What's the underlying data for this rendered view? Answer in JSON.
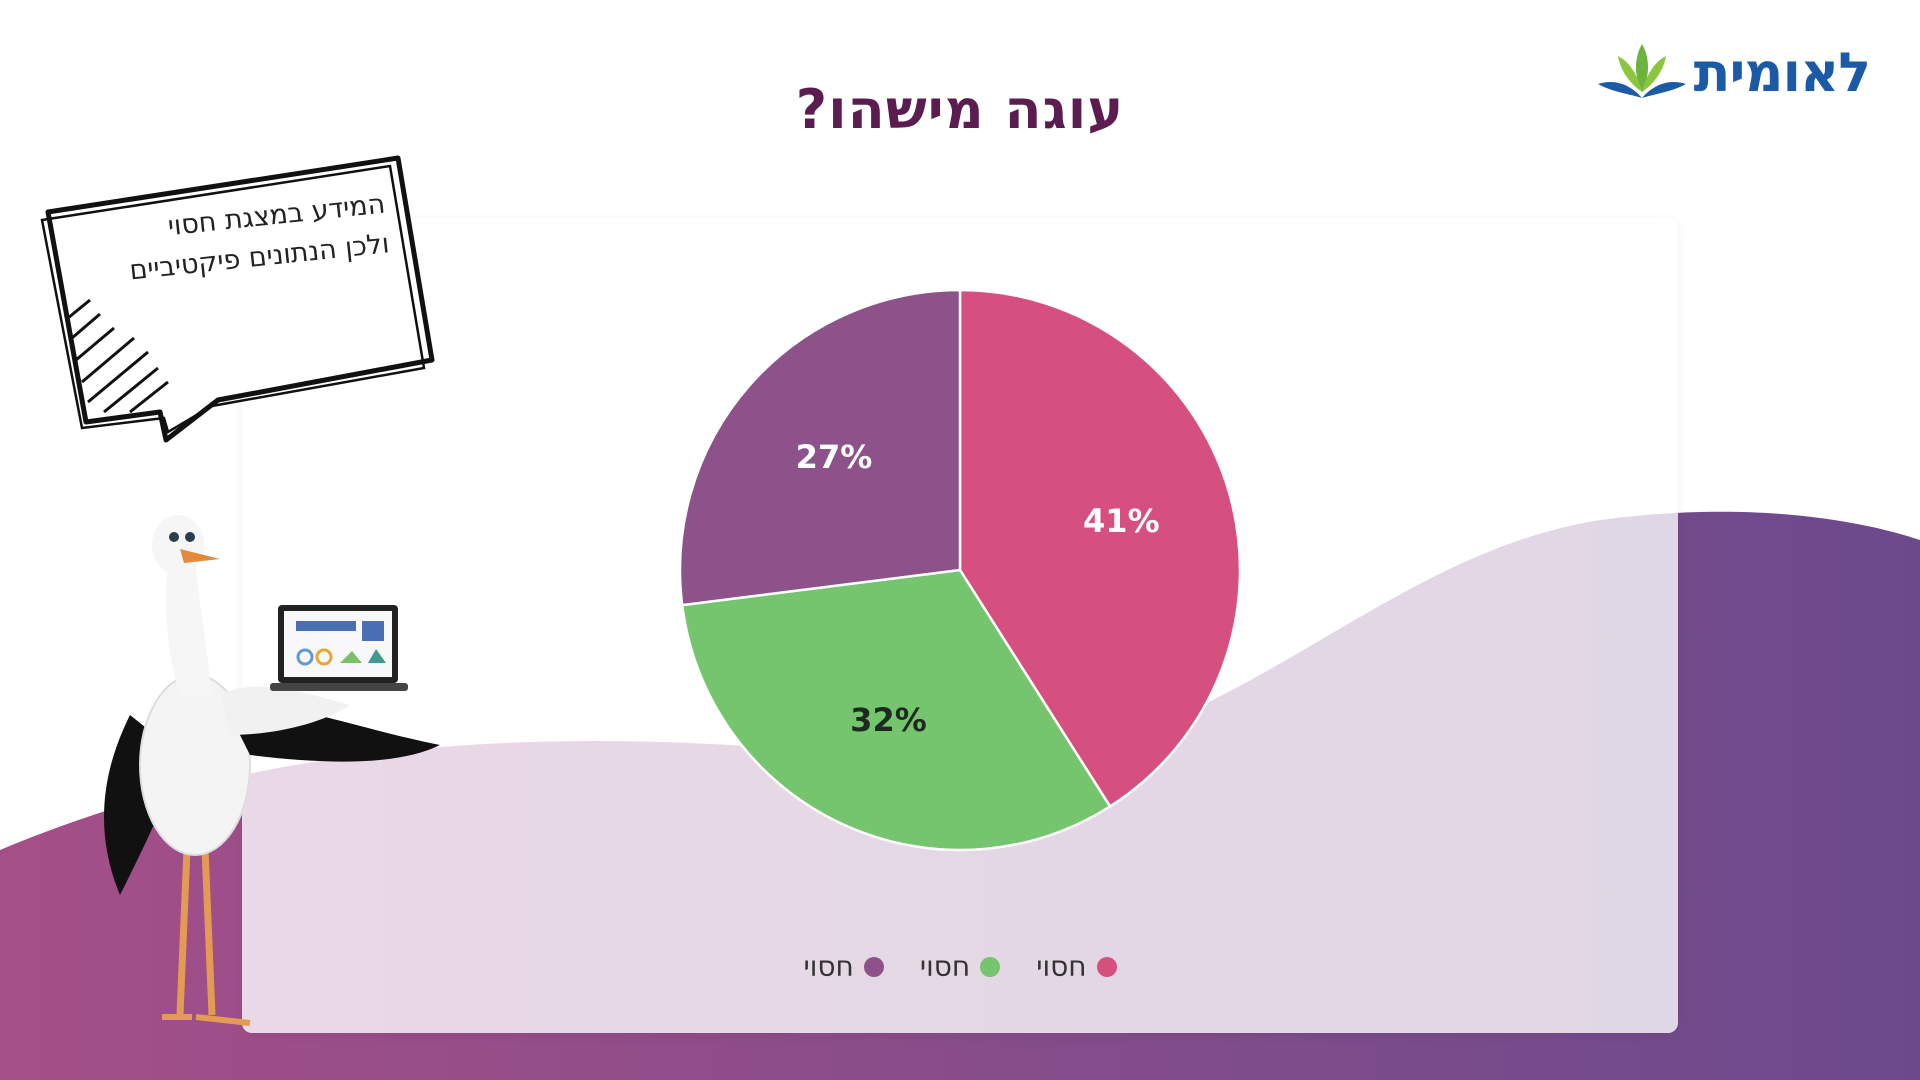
{
  "header": {
    "title": "עוגה מישהו?"
  },
  "logo": {
    "text": "לאומית",
    "icon": "flower-logo-icon"
  },
  "note": {
    "lines": [
      "המידע במצגת חסוי",
      "ולכן הנתונים פיקטיביים"
    ]
  },
  "chart_data": {
    "type": "pie",
    "values": [
      41,
      32,
      27
    ],
    "labels": [
      "חסוי",
      "חסוי",
      "חסוי"
    ],
    "value_labels": [
      "41%",
      "32%",
      "27%"
    ],
    "colors": [
      "#d6507f",
      "#74c56e",
      "#8e528a"
    ],
    "label_colors": [
      "#ffffff",
      "#1e2a20",
      "#ffffff"
    ],
    "legend_position": "bottom"
  },
  "colors": {
    "title": "#5b1c4f",
    "wave_start": "#a44f88",
    "wave_end": "#6b4a8c",
    "logo": "#1b5aa7"
  },
  "illustration": {
    "icon": "stork-with-laptop-icon"
  }
}
